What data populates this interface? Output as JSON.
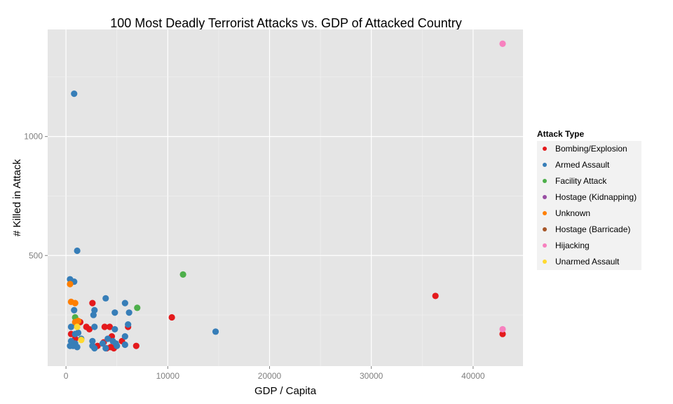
{
  "chart_data": {
    "type": "scatter",
    "title": "100 Most Deadly Terrorist Attacks vs. GDP of Attacked Country",
    "xlabel": "GDP / Capita",
    "ylabel": "# Killed in Attack",
    "xlim": [
      -1800,
      44900
    ],
    "ylim": [
      35,
      1450
    ],
    "xticks": [
      0,
      10000,
      20000,
      30000,
      40000
    ],
    "yticks": [
      500,
      1000
    ],
    "grid": true,
    "background": "#e5e5e5",
    "legend": {
      "title": "Attack Type",
      "position": "right"
    },
    "series": [
      {
        "name": "Bombing/Explosion",
        "color": "#e41a1c",
        "points": [
          [
            10400,
            240
          ],
          [
            36300,
            330
          ],
          [
            42900,
            170
          ],
          [
            2600,
            300
          ],
          [
            1400,
            220
          ],
          [
            2000,
            200
          ],
          [
            2300,
            190
          ],
          [
            3800,
            200
          ],
          [
            4300,
            200
          ],
          [
            4500,
            160
          ],
          [
            3100,
            120
          ],
          [
            4000,
            110
          ],
          [
            4400,
            115
          ],
          [
            5500,
            140
          ],
          [
            6100,
            200
          ],
          [
            6900,
            120
          ],
          [
            500,
            170
          ],
          [
            900,
            150
          ],
          [
            3700,
            135
          ],
          [
            4700,
            110
          ]
        ]
      },
      {
        "name": "Armed Assault",
        "color": "#377eb8",
        "points": [
          [
            800,
            1180
          ],
          [
            1100,
            520
          ],
          [
            400,
            400
          ],
          [
            800,
            390
          ],
          [
            3900,
            320
          ],
          [
            5800,
            300
          ],
          [
            800,
            270
          ],
          [
            2800,
            270
          ],
          [
            6200,
            260
          ],
          [
            2700,
            250
          ],
          [
            4800,
            260
          ],
          [
            500,
            200
          ],
          [
            1000,
            210
          ],
          [
            6100,
            210
          ],
          [
            2800,
            200
          ],
          [
            4800,
            190
          ],
          [
            14700,
            180
          ],
          [
            900,
            170
          ],
          [
            5800,
            160
          ],
          [
            1500,
            150
          ],
          [
            4100,
            150
          ],
          [
            500,
            140
          ],
          [
            2600,
            140
          ],
          [
            900,
            130
          ],
          [
            3600,
            130
          ],
          [
            5000,
            120
          ],
          [
            5800,
            125
          ],
          [
            400,
            120
          ],
          [
            1100,
            115
          ],
          [
            2600,
            120
          ],
          [
            2800,
            110
          ],
          [
            3900,
            110
          ],
          [
            4600,
            140
          ],
          [
            4900,
            130
          ],
          [
            1200,
            175
          ],
          [
            700,
            120
          ]
        ]
      },
      {
        "name": "Facility Attack",
        "color": "#4daf4a",
        "points": [
          [
            11500,
            420
          ],
          [
            7000,
            280
          ],
          [
            900,
            240
          ]
        ]
      },
      {
        "name": "Hostage (Kidnapping)",
        "color": "#984ea3",
        "points": []
      },
      {
        "name": "Unknown",
        "color": "#ff7f00",
        "points": [
          [
            400,
            380
          ],
          [
            500,
            305
          ],
          [
            900,
            300
          ],
          [
            900,
            220
          ],
          [
            1200,
            225
          ]
        ]
      },
      {
        "name": "Hostage (Barricade)",
        "color": "#a65628",
        "points": []
      },
      {
        "name": "Hijacking",
        "color": "#f781bf",
        "points": [
          [
            42900,
            1390
          ],
          [
            42900,
            190
          ]
        ]
      },
      {
        "name": "Unarmed Assault",
        "color": "#ffd92f",
        "points": [
          [
            1100,
            200
          ],
          [
            1500,
            145
          ]
        ]
      }
    ]
  }
}
